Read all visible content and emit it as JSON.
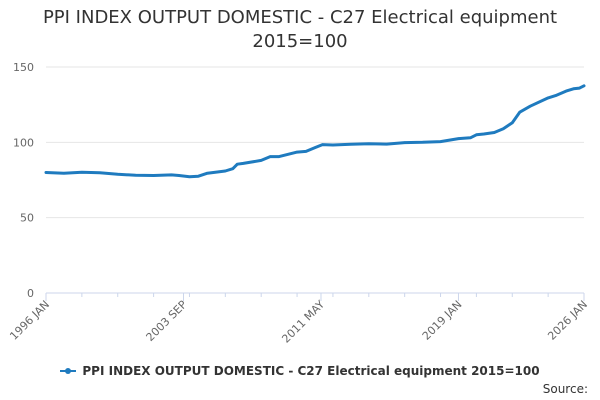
{
  "colors": {
    "series": "#1f7bbf",
    "grid": "#e6e6e6",
    "axis": "#ccd6eb",
    "text": "#333333",
    "tick_text": "#666666"
  },
  "source_label": "Source:",
  "chart_data": {
    "type": "line",
    "title_lines": [
      "PPI INDEX OUTPUT DOMESTIC - C27 Electrical equipment",
      "2015=100"
    ],
    "xlabel": "",
    "ylabel": "",
    "grid": true,
    "legend_position": "bottom",
    "ylim": [
      0,
      150
    ],
    "y_ticks": [
      0,
      50,
      100,
      150
    ],
    "x_range": [
      "1996-01",
      "2026-01"
    ],
    "x_ticks": [
      {
        "date": "1996-01",
        "label": "1996 JAN"
      },
      {
        "date": "2003-09",
        "label": "2003 SEP"
      },
      {
        "date": "2011-05",
        "label": "2011 MAY"
      },
      {
        "date": "2019-01",
        "label": "2019 JAN"
      },
      {
        "date": "2026-01",
        "label": "2026 JAN"
      }
    ],
    "series": [
      {
        "name": "PPI INDEX OUTPUT DOMESTIC - C27 Electrical equipment 2015=100",
        "points": [
          [
            "1996-01",
            80.0
          ],
          [
            "1997-01",
            79.5
          ],
          [
            "1998-01",
            80.2
          ],
          [
            "1999-01",
            79.8
          ],
          [
            "2000-01",
            78.8
          ],
          [
            "2001-01",
            78.2
          ],
          [
            "2002-01",
            78.0
          ],
          [
            "2003-01",
            78.4
          ],
          [
            "2003-06",
            78.0
          ],
          [
            "2004-01",
            77.2
          ],
          [
            "2004-07",
            77.5
          ],
          [
            "2005-01",
            79.5
          ],
          [
            "2006-01",
            81.0
          ],
          [
            "2006-06",
            82.5
          ],
          [
            "2006-09",
            85.5
          ],
          [
            "2007-01",
            86.0
          ],
          [
            "2008-01",
            88.0
          ],
          [
            "2008-07",
            90.5
          ],
          [
            "2009-01",
            90.5
          ],
          [
            "2010-01",
            93.5
          ],
          [
            "2010-07",
            94.0
          ],
          [
            "2011-01",
            96.5
          ],
          [
            "2011-06",
            98.5
          ],
          [
            "2012-01",
            98.2
          ],
          [
            "2013-01",
            98.7
          ],
          [
            "2014-01",
            99.0
          ],
          [
            "2015-01",
            98.8
          ],
          [
            "2016-01",
            99.8
          ],
          [
            "2017-01",
            100.0
          ],
          [
            "2018-01",
            100.5
          ],
          [
            "2019-01",
            102.5
          ],
          [
            "2019-09",
            103.0
          ],
          [
            "2020-01",
            105.0
          ],
          [
            "2020-06",
            105.5
          ],
          [
            "2021-01",
            106.5
          ],
          [
            "2021-07",
            109.0
          ],
          [
            "2022-01",
            113.0
          ],
          [
            "2022-06",
            120.0
          ],
          [
            "2023-01",
            124.0
          ],
          [
            "2024-01",
            129.5
          ],
          [
            "2024-06",
            131.0
          ],
          [
            "2025-01",
            134.0
          ],
          [
            "2025-06",
            135.5
          ],
          [
            "2025-10",
            136.0
          ],
          [
            "2026-01",
            137.5
          ]
        ]
      }
    ]
  }
}
